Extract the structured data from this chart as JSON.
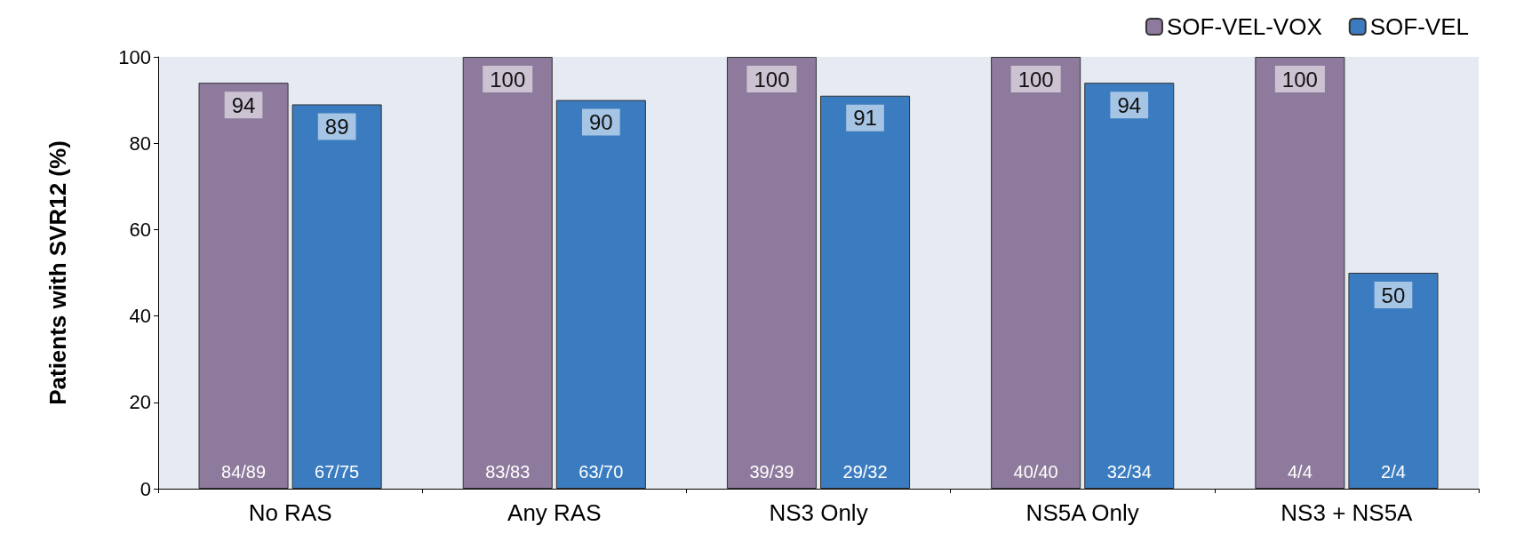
{
  "chart_data": {
    "type": "bar",
    "ylabel": "Patients with SVR12 (%)",
    "categories": [
      "No RAS",
      "Any RAS",
      "NS3 Only",
      "NS5A Only",
      "NS3 + NS5A"
    ],
    "series": [
      {
        "name": "SOF-VEL-VOX",
        "color": "#8e7a9c",
        "values": [
          94,
          100,
          100,
          100,
          100
        ]
      },
      {
        "name": "SOF-VEL",
        "color": "#3b7cc0",
        "values": [
          89,
          90,
          91,
          94,
          50
        ]
      }
    ],
    "annotations": [
      {
        "text": "84/89",
        "x": "No RAS",
        "y": 4
      },
      {
        "text": "67/75",
        "x": "No RAS",
        "y": 4
      },
      {
        "text": "83/83",
        "x": "Any RAS",
        "y": 4
      },
      {
        "text": "63/70",
        "x": "Any RAS",
        "y": 4
      },
      {
        "text": "39/39",
        "x": "NS3 Only",
        "y": 4
      },
      {
        "text": "29/32",
        "x": "NS3 Only",
        "y": 4
      },
      {
        "text": "40/40",
        "x": "NS5A Only",
        "y": 4
      },
      {
        "text": "32/34",
        "x": "NS5A Only",
        "y": 4
      },
      {
        "text": "4/4",
        "x": "NS3 + NS5A",
        "y": 4
      },
      {
        "text": "2/4",
        "x": "NS3 + NS5A",
        "y": 4
      }
    ],
    "ylim": [
      0,
      100
    ],
    "yticks": [
      0,
      20,
      40,
      60,
      80,
      100
    ],
    "grid": false,
    "legend": "top right",
    "data_labels": true
  }
}
